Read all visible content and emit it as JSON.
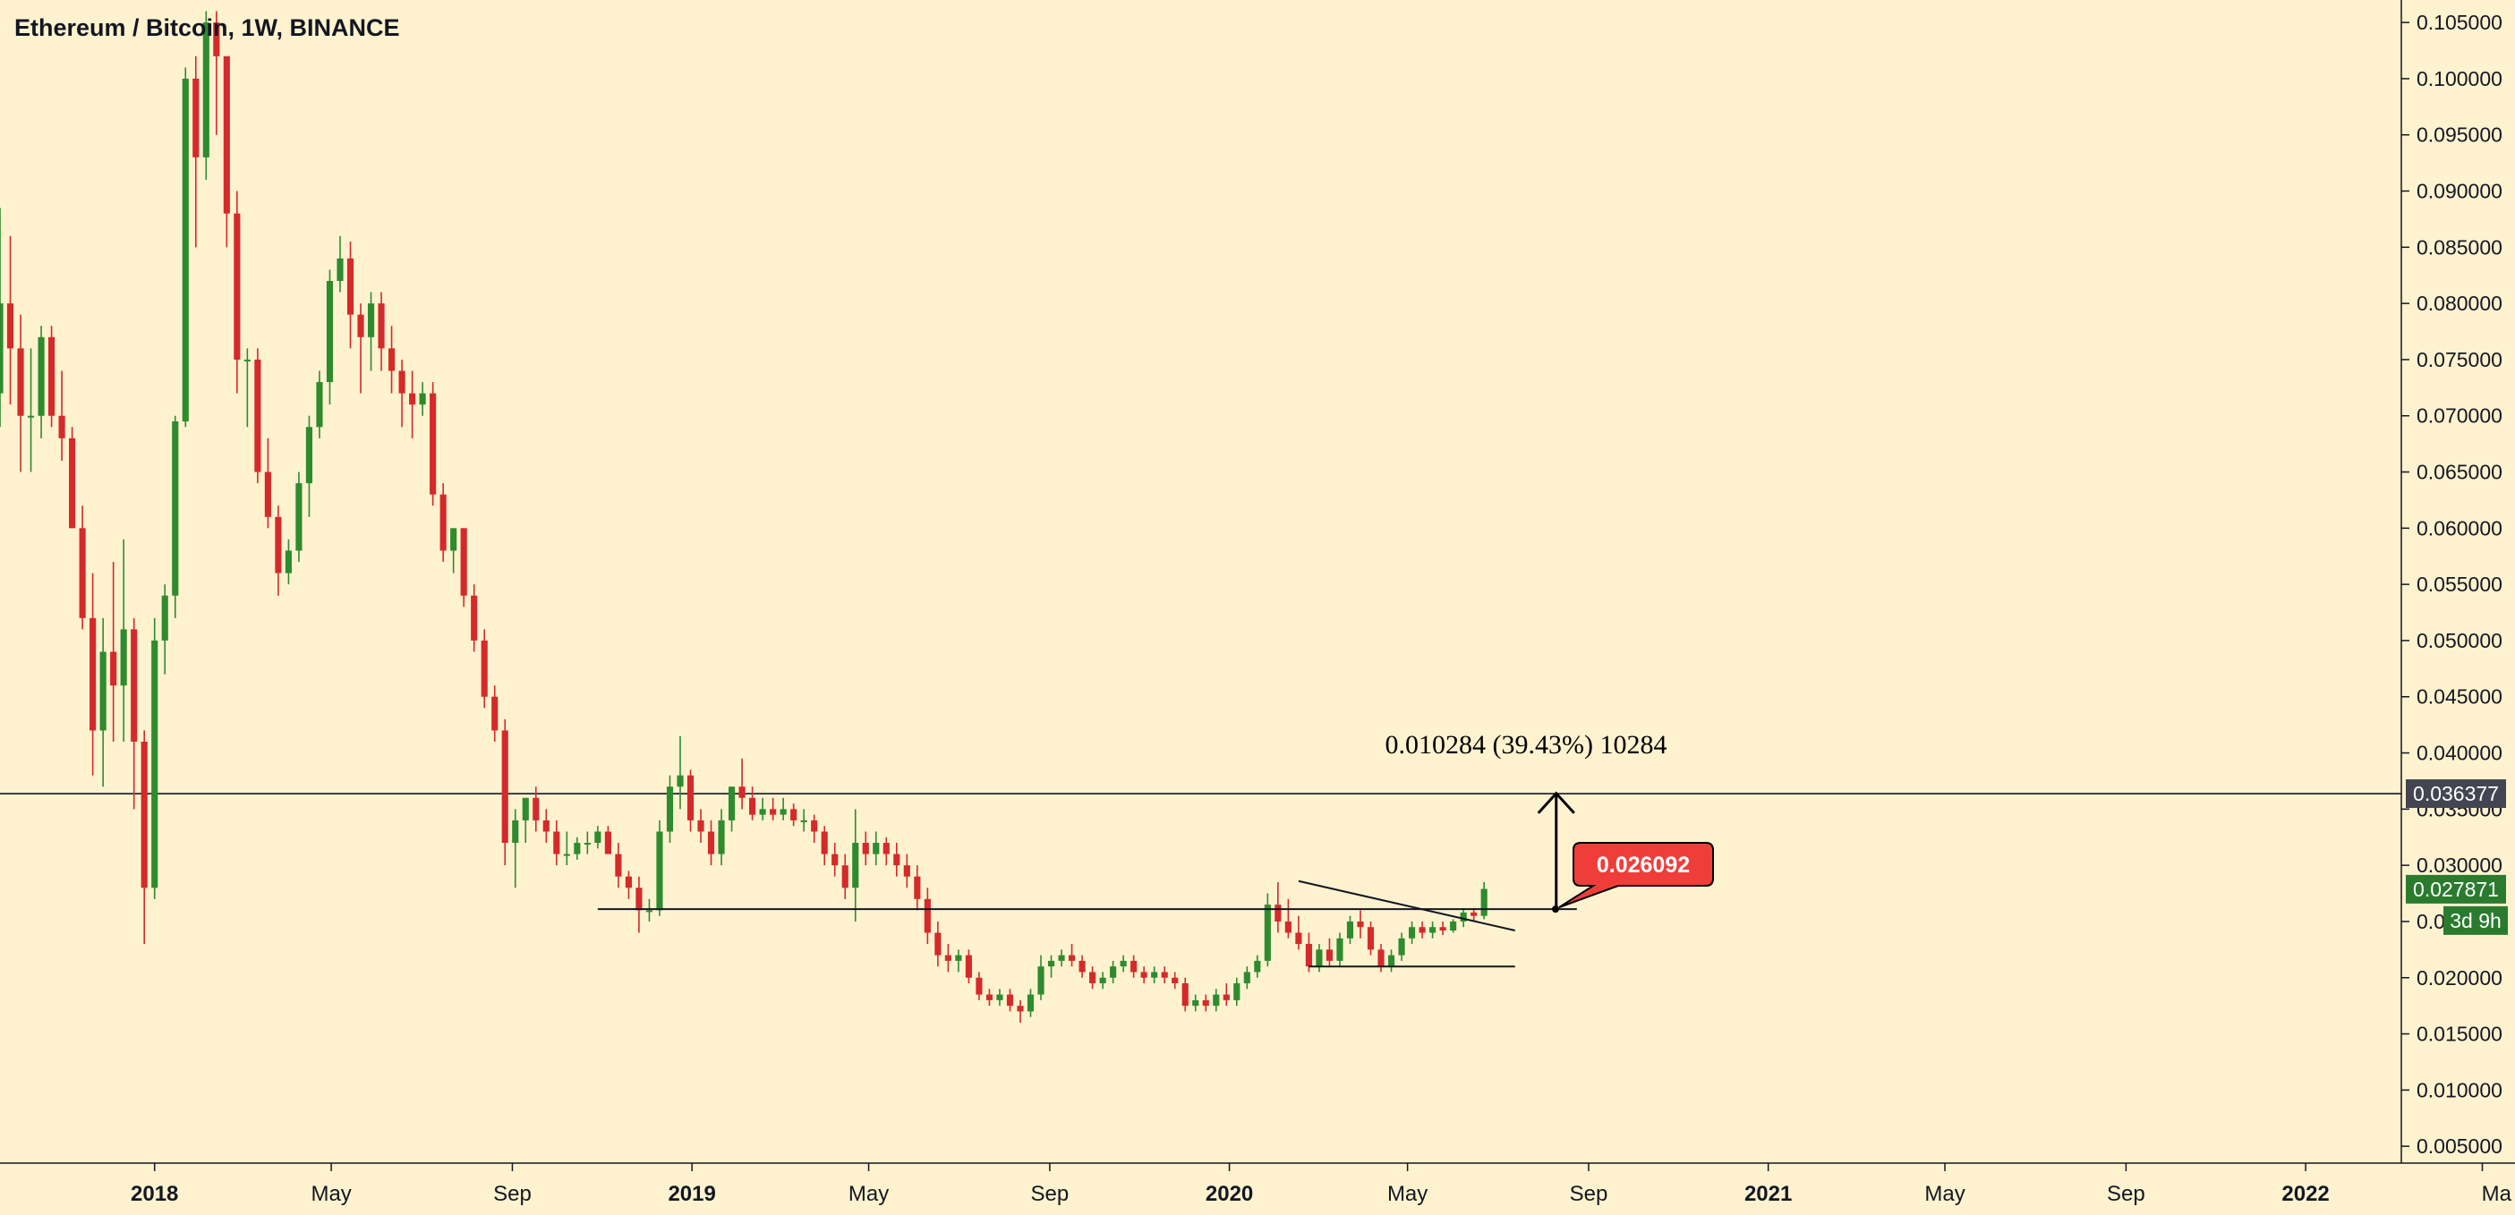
{
  "chart_data": {
    "type": "candlestick",
    "title": "Ethereum / Bitcoin, 1W, BINANCE",
    "symbol": "Ethereum / Bitcoin",
    "interval": "1W",
    "exchange": "BINANCE",
    "colors": {
      "background": "#FEF2CF",
      "up": "#2E8B2E",
      "down": "#D42A2A",
      "axis_text": "#131722",
      "line": "#131722",
      "price_label_current": "#2B7B2F",
      "price_label_level": "#434651",
      "callout": "#EF3E3A"
    },
    "x_axis": {
      "range": [
        "2017-09-18",
        "2022-03-07"
      ],
      "ticks": [
        {
          "date": "2018-01-01",
          "label": "2018",
          "bold": true
        },
        {
          "date": "2018-05-01",
          "label": "May",
          "bold": false
        },
        {
          "date": "2018-09-01",
          "label": "Sep",
          "bold": false
        },
        {
          "date": "2019-01-01",
          "label": "2019",
          "bold": true
        },
        {
          "date": "2019-05-01",
          "label": "May",
          "bold": false
        },
        {
          "date": "2019-09-01",
          "label": "Sep",
          "bold": false
        },
        {
          "date": "2020-01-01",
          "label": "2020",
          "bold": true
        },
        {
          "date": "2020-05-01",
          "label": "May",
          "bold": false
        },
        {
          "date": "2020-09-01",
          "label": "Sep",
          "bold": false
        },
        {
          "date": "2021-01-01",
          "label": "2021",
          "bold": true
        },
        {
          "date": "2021-05-01",
          "label": "May",
          "bold": false
        },
        {
          "date": "2021-09-01",
          "label": "Sep",
          "bold": false
        },
        {
          "date": "2022-01-01",
          "label": "2022",
          "bold": true
        },
        {
          "date": "2022-05-01",
          "label": "Ma",
          "bold": false
        }
      ]
    },
    "y_axis": {
      "range": [
        0.0035,
        0.107
      ],
      "ticks": [
        "0.005000",
        "0.010000",
        "0.015000",
        "0.020000",
        "0.025000",
        "0.030000",
        "0.035000",
        "0.040000",
        "0.045000",
        "0.050000",
        "0.055000",
        "0.060000",
        "0.065000",
        "0.070000",
        "0.075000",
        "0.080000",
        "0.085000",
        "0.090000",
        "0.095000",
        "0.100000",
        "0.105000"
      ]
    },
    "candles_start": "2017-09-18",
    "candles": [
      [
        0.072,
        0.0885,
        0.069,
        0.08
      ],
      [
        0.08,
        0.086,
        0.071,
        0.076
      ],
      [
        0.076,
        0.079,
        0.065,
        0.07
      ],
      [
        0.07,
        0.076,
        0.065,
        0.07
      ],
      [
        0.07,
        0.078,
        0.068,
        0.077
      ],
      [
        0.077,
        0.078,
        0.069,
        0.07
      ],
      [
        0.07,
        0.074,
        0.066,
        0.068
      ],
      [
        0.068,
        0.069,
        0.06,
        0.06
      ],
      [
        0.06,
        0.062,
        0.051,
        0.052
      ],
      [
        0.052,
        0.056,
        0.038,
        0.042
      ],
      [
        0.042,
        0.052,
        0.037,
        0.049
      ],
      [
        0.049,
        0.057,
        0.041,
        0.046
      ],
      [
        0.046,
        0.059,
        0.041,
        0.051
      ],
      [
        0.051,
        0.052,
        0.035,
        0.041
      ],
      [
        0.041,
        0.042,
        0.023,
        0.028
      ],
      [
        0.028,
        0.052,
        0.027,
        0.05
      ],
      [
        0.05,
        0.055,
        0.047,
        0.054
      ],
      [
        0.054,
        0.07,
        0.052,
        0.0695
      ],
      [
        0.0695,
        0.101,
        0.069,
        0.1
      ],
      [
        0.1,
        0.102,
        0.085,
        0.093
      ],
      [
        0.093,
        0.106,
        0.091,
        0.105
      ],
      [
        0.105,
        0.106,
        0.095,
        0.102
      ],
      [
        0.102,
        0.101,
        0.085,
        0.088
      ],
      [
        0.088,
        0.09,
        0.072,
        0.075
      ],
      [
        0.075,
        0.076,
        0.069,
        0.075
      ],
      [
        0.075,
        0.076,
        0.064,
        0.065
      ],
      [
        0.065,
        0.068,
        0.06,
        0.061
      ],
      [
        0.061,
        0.062,
        0.054,
        0.056
      ],
      [
        0.056,
        0.059,
        0.055,
        0.058
      ],
      [
        0.058,
        0.065,
        0.057,
        0.064
      ],
      [
        0.064,
        0.07,
        0.061,
        0.069
      ],
      [
        0.069,
        0.074,
        0.068,
        0.073
      ],
      [
        0.073,
        0.083,
        0.071,
        0.082
      ],
      [
        0.082,
        0.086,
        0.081,
        0.084
      ],
      [
        0.084,
        0.0855,
        0.076,
        0.079
      ],
      [
        0.079,
        0.08,
        0.072,
        0.077
      ],
      [
        0.077,
        0.081,
        0.074,
        0.08
      ],
      [
        0.08,
        0.081,
        0.074,
        0.076
      ],
      [
        0.076,
        0.078,
        0.072,
        0.074
      ],
      [
        0.074,
        0.075,
        0.069,
        0.072
      ],
      [
        0.072,
        0.074,
        0.068,
        0.071
      ],
      [
        0.071,
        0.073,
        0.07,
        0.072
      ],
      [
        0.072,
        0.073,
        0.062,
        0.063
      ],
      [
        0.063,
        0.064,
        0.057,
        0.058
      ],
      [
        0.058,
        0.06,
        0.056,
        0.06
      ],
      [
        0.06,
        0.06,
        0.053,
        0.054
      ],
      [
        0.054,
        0.055,
        0.049,
        0.05
      ],
      [
        0.05,
        0.051,
        0.044,
        0.045
      ],
      [
        0.045,
        0.046,
        0.041,
        0.042
      ],
      [
        0.042,
        0.043,
        0.03,
        0.032
      ],
      [
        0.032,
        0.035,
        0.028,
        0.034
      ],
      [
        0.034,
        0.036,
        0.032,
        0.036
      ],
      [
        0.036,
        0.037,
        0.033,
        0.034
      ],
      [
        0.034,
        0.035,
        0.032,
        0.033
      ],
      [
        0.033,
        0.034,
        0.03,
        0.031
      ],
      [
        0.031,
        0.033,
        0.03,
        0.031
      ],
      [
        0.031,
        0.0325,
        0.0305,
        0.032
      ],
      [
        0.032,
        0.033,
        0.031,
        0.032
      ],
      [
        0.032,
        0.0335,
        0.0315,
        0.033
      ],
      [
        0.033,
        0.0335,
        0.031,
        0.031
      ],
      [
        0.031,
        0.032,
        0.028,
        0.029
      ],
      [
        0.029,
        0.0295,
        0.027,
        0.028
      ],
      [
        0.028,
        0.029,
        0.024,
        0.026
      ],
      [
        0.026,
        0.027,
        0.025,
        0.026
      ],
      [
        0.026,
        0.034,
        0.0255,
        0.033
      ],
      [
        0.033,
        0.038,
        0.032,
        0.037
      ],
      [
        0.037,
        0.0415,
        0.035,
        0.038
      ],
      [
        0.038,
        0.0385,
        0.033,
        0.034
      ],
      [
        0.034,
        0.035,
        0.032,
        0.033
      ],
      [
        0.033,
        0.034,
        0.03,
        0.031
      ],
      [
        0.031,
        0.035,
        0.03,
        0.034
      ],
      [
        0.034,
        0.037,
        0.033,
        0.037
      ],
      [
        0.037,
        0.0395,
        0.035,
        0.036
      ],
      [
        0.036,
        0.037,
        0.034,
        0.0345
      ],
      [
        0.0345,
        0.036,
        0.034,
        0.035
      ],
      [
        0.035,
        0.036,
        0.034,
        0.0345
      ],
      [
        0.0345,
        0.036,
        0.034,
        0.035
      ],
      [
        0.035,
        0.0355,
        0.0335,
        0.034
      ],
      [
        0.034,
        0.035,
        0.033,
        0.034
      ],
      [
        0.034,
        0.0345,
        0.032,
        0.033
      ],
      [
        0.033,
        0.0335,
        0.03,
        0.031
      ],
      [
        0.031,
        0.032,
        0.029,
        0.03
      ],
      [
        0.03,
        0.031,
        0.027,
        0.028
      ],
      [
        0.028,
        0.035,
        0.025,
        0.032
      ],
      [
        0.032,
        0.033,
        0.03,
        0.031
      ],
      [
        0.031,
        0.033,
        0.03,
        0.032
      ],
      [
        0.032,
        0.0325,
        0.03,
        0.031
      ],
      [
        0.031,
        0.032,
        0.029,
        0.03
      ],
      [
        0.03,
        0.031,
        0.028,
        0.029
      ],
      [
        0.029,
        0.03,
        0.026,
        0.027
      ],
      [
        0.027,
        0.028,
        0.023,
        0.024
      ],
      [
        0.024,
        0.025,
        0.021,
        0.022
      ],
      [
        0.022,
        0.023,
        0.0205,
        0.0215
      ],
      [
        0.0215,
        0.0225,
        0.0205,
        0.022
      ],
      [
        0.022,
        0.0225,
        0.0195,
        0.02
      ],
      [
        0.02,
        0.0205,
        0.018,
        0.0185
      ],
      [
        0.0185,
        0.019,
        0.0175,
        0.018
      ],
      [
        0.018,
        0.019,
        0.0175,
        0.0185
      ],
      [
        0.0185,
        0.019,
        0.017,
        0.0175
      ],
      [
        0.0175,
        0.018,
        0.016,
        0.017
      ],
      [
        0.017,
        0.019,
        0.0165,
        0.0185
      ],
      [
        0.0185,
        0.022,
        0.018,
        0.021
      ],
      [
        0.021,
        0.022,
        0.02,
        0.0215
      ],
      [
        0.0215,
        0.0225,
        0.021,
        0.022
      ],
      [
        0.022,
        0.023,
        0.021,
        0.0215
      ],
      [
        0.0215,
        0.022,
        0.02,
        0.0205
      ],
      [
        0.0205,
        0.021,
        0.019,
        0.0195
      ],
      [
        0.0195,
        0.0205,
        0.019,
        0.02
      ],
      [
        0.02,
        0.0215,
        0.0195,
        0.021
      ],
      [
        0.021,
        0.022,
        0.0205,
        0.0215
      ],
      [
        0.0215,
        0.022,
        0.02,
        0.0205
      ],
      [
        0.0205,
        0.021,
        0.0195,
        0.02
      ],
      [
        0.02,
        0.021,
        0.0195,
        0.0205
      ],
      [
        0.0205,
        0.021,
        0.0195,
        0.02
      ],
      [
        0.02,
        0.0205,
        0.019,
        0.0195
      ],
      [
        0.0195,
        0.02,
        0.017,
        0.0175
      ],
      [
        0.0175,
        0.0185,
        0.017,
        0.018
      ],
      [
        0.018,
        0.0185,
        0.017,
        0.0175
      ],
      [
        0.0175,
        0.019,
        0.017,
        0.0185
      ],
      [
        0.0185,
        0.0195,
        0.0175,
        0.018
      ],
      [
        0.018,
        0.02,
        0.0175,
        0.0195
      ],
      [
        0.0195,
        0.021,
        0.019,
        0.0205
      ],
      [
        0.0205,
        0.022,
        0.02,
        0.0215
      ],
      [
        0.0215,
        0.0275,
        0.021,
        0.0265
      ],
      [
        0.0265,
        0.0285,
        0.024,
        0.025
      ],
      [
        0.025,
        0.027,
        0.0235,
        0.024
      ],
      [
        0.024,
        0.0255,
        0.0225,
        0.023
      ],
      [
        0.023,
        0.024,
        0.0205,
        0.021
      ],
      [
        0.021,
        0.023,
        0.0205,
        0.0225
      ],
      [
        0.0225,
        0.0235,
        0.021,
        0.0215
      ],
      [
        0.0215,
        0.024,
        0.021,
        0.0235
      ],
      [
        0.0235,
        0.0255,
        0.023,
        0.025
      ],
      [
        0.025,
        0.026,
        0.0235,
        0.0245
      ],
      [
        0.0245,
        0.025,
        0.022,
        0.0225
      ],
      [
        0.0225,
        0.023,
        0.0205,
        0.021
      ],
      [
        0.021,
        0.0225,
        0.0205,
        0.022
      ],
      [
        0.022,
        0.024,
        0.0215,
        0.0235
      ],
      [
        0.0235,
        0.025,
        0.023,
        0.0245
      ],
      [
        0.0245,
        0.025,
        0.0235,
        0.024
      ],
      [
        0.024,
        0.025,
        0.0235,
        0.0245
      ],
      [
        0.0245,
        0.025,
        0.0238,
        0.0242
      ],
      [
        0.0242,
        0.0252,
        0.024,
        0.025
      ],
      [
        0.025,
        0.0262,
        0.0245,
        0.0258
      ],
      [
        0.0258,
        0.0262,
        0.025,
        0.0255
      ],
      [
        0.0255,
        0.0285,
        0.0252,
        0.0279
      ]
    ],
    "current_price": "0.027871",
    "countdown": "3d 9h",
    "level_label": "0.036377",
    "level_price": 0.036377,
    "callout_label": "0.026092",
    "measure_label": "0.010284 (39.43%) 10284",
    "drawings": {
      "support_line": {
        "x1": "2018-10-29",
        "x2": "2020-08-24",
        "y": 0.0261
      },
      "triangle_upper": {
        "x1": "2020-02-17",
        "y1": 0.0286,
        "x2": "2020-07-13",
        "y2": 0.0242
      },
      "triangle_lower": {
        "x1": "2020-02-24",
        "y1": 0.021,
        "x2": "2020-07-13",
        "y2": 0.021
      },
      "measure_arrow": {
        "x": "2020-08-10",
        "y1": 0.0261,
        "y2": 0.0364
      }
    }
  }
}
